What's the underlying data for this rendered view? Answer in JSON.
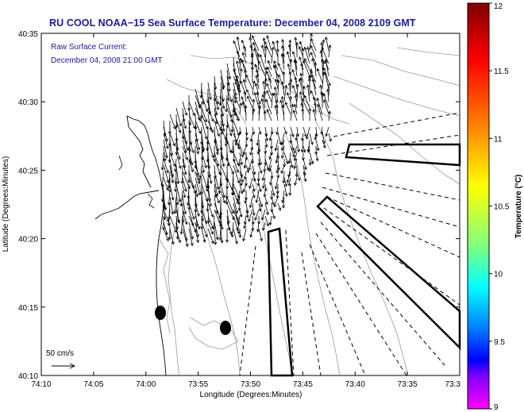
{
  "header": {
    "title": "RU COOL  NOAA−15  Sea Surface Temperature:  December 04, 2008 2109 GMT"
  },
  "overlay_legend": {
    "line1": "Raw Surface Current:",
    "line2": "December 04, 2008 21:00 GMT"
  },
  "scale_label": "50 cm/s",
  "axes": {
    "x_title": "Longitude (Degrees:Minutes)",
    "y_title": "Latitude (Degrees:Minutes)",
    "x_ticks": [
      "74:10",
      "74:05",
      "74:00",
      "73:55",
      "73:50",
      "73:45",
      "73:40",
      "73:35",
      "73:3"
    ],
    "y_ticks": [
      "40:35",
      "40:30",
      "40:25",
      "40:20",
      "40:15",
      "40:10"
    ]
  },
  "colorbar": {
    "title": "Temperature (°C)",
    "ticks": [
      "12",
      "11.5",
      "11",
      "10.5",
      "10",
      "9.5",
      "9"
    ],
    "colors": [
      "#800000",
      "#ff0000",
      "#ff8000",
      "#ffff00",
      "#80ff80",
      "#00ffff",
      "#0080ff",
      "#0000ff",
      "#ff00ff"
    ]
  }
}
